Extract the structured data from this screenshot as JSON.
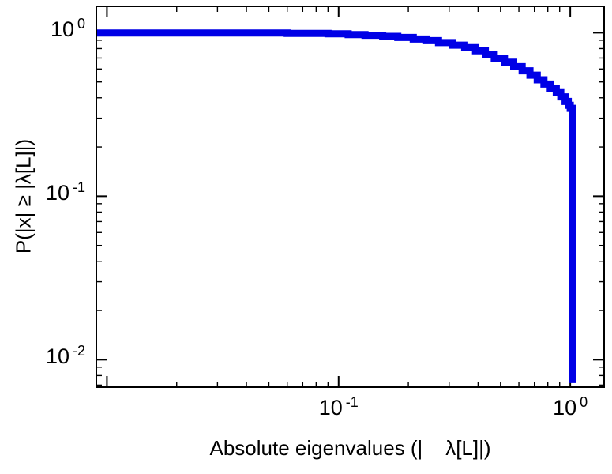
{
  "figure": {
    "background": "#ffffff",
    "axis_color": "#000000"
  },
  "chart_data": {
    "type": "line",
    "subtype": "ccdf-step-loglog",
    "title": "",
    "xlabel": "Absolute eigenvalues (|    λ[L]|)",
    "ylabel": "P(|x| ≥ |λ[L]|)",
    "xscale": "log",
    "yscale": "log",
    "xlim": [
      0.009,
      1.4
    ],
    "ylim": [
      0.0068,
      1.45
    ],
    "tick_base": "10",
    "x_tick_exponents": [
      "-1",
      "0"
    ],
    "y_tick_exponents": [
      "0",
      "-1",
      "-2"
    ],
    "grid": false,
    "legend": "none",
    "line_color": "#0000e6",
    "line_width": 9,
    "x": [
      0.009,
      0.03,
      0.06,
      0.09,
      0.11,
      0.13,
      0.155,
      0.18,
      0.21,
      0.24,
      0.27,
      0.31,
      0.35,
      0.39,
      0.43,
      0.47,
      0.52,
      0.57,
      0.62,
      0.67,
      0.72,
      0.77,
      0.82,
      0.87,
      0.91,
      0.95,
      0.98,
      1.0,
      1.02,
      1.02
    ],
    "y": [
      0.995,
      0.995,
      0.99,
      0.985,
      0.975,
      0.965,
      0.95,
      0.935,
      0.915,
      0.895,
      0.87,
      0.84,
      0.81,
      0.775,
      0.74,
      0.7,
      0.66,
      0.62,
      0.585,
      0.55,
      0.515,
      0.485,
      0.455,
      0.43,
      0.405,
      0.38,
      0.36,
      0.345,
      0.33,
      0.0072
    ]
  }
}
